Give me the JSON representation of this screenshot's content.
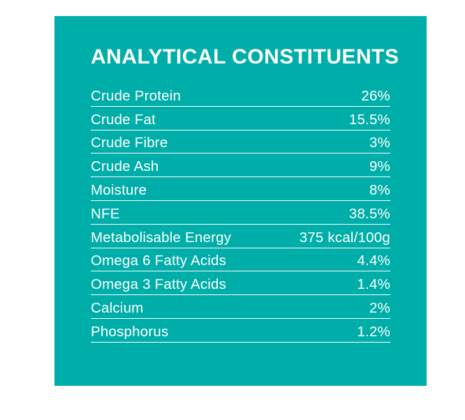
{
  "panel": {
    "background_color": "#00AEA9",
    "text_color": "#FFFFFF",
    "divider_color": "#FFFFFF",
    "title": "ANALYTICAL CONSTITUENTS"
  },
  "table": {
    "rows": [
      {
        "label": "Crude Protein",
        "value": "26%"
      },
      {
        "label": "Crude Fat",
        "value": "15.5%"
      },
      {
        "label": "Crude Fibre",
        "value": "3%"
      },
      {
        "label": "Crude Ash",
        "value": "9%"
      },
      {
        "label": "Moisture",
        "value": "8%"
      },
      {
        "label": "NFE",
        "value": "38.5%"
      },
      {
        "label": "Metabolisable Energy",
        "value": "375 kcal/100g"
      },
      {
        "label": "Omega 6 Fatty Acids",
        "value": "4.4%"
      },
      {
        "label": "Omega 3 Fatty Acids",
        "value": "1.4%"
      },
      {
        "label": "Calcium",
        "value": "2%"
      },
      {
        "label": "Phosphorus",
        "value": "1.2%"
      }
    ]
  }
}
